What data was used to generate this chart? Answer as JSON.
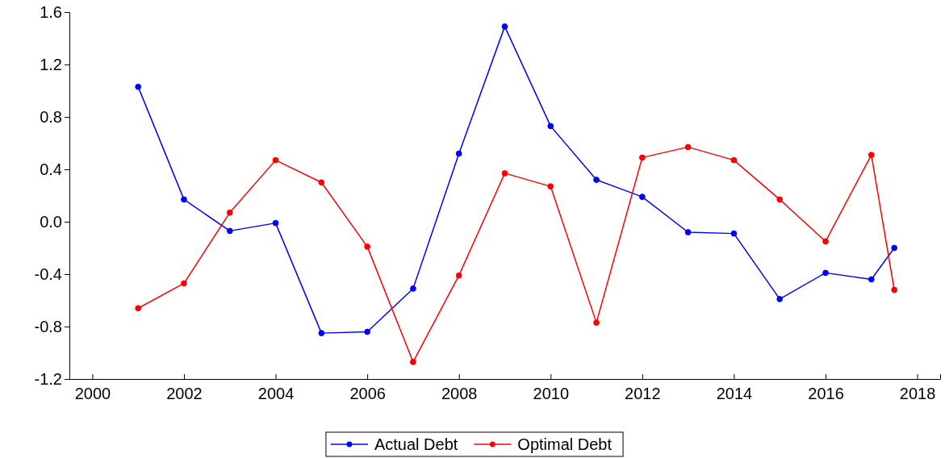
{
  "chart_data": {
    "type": "line",
    "x": [
      2001,
      2002,
      2003,
      2004,
      2005,
      2006,
      2007,
      2008,
      2009,
      2010,
      2011,
      2012,
      2013,
      2014,
      2015,
      2016,
      2017,
      2017.5
    ],
    "series": [
      {
        "name": "Actual Debt",
        "color": "#0000ff",
        "values": [
          1.03,
          0.17,
          -0.07,
          -0.01,
          -0.85,
          -0.84,
          -0.51,
          0.52,
          1.49,
          0.73,
          0.32,
          0.19,
          -0.08,
          -0.09,
          -0.59,
          -0.39,
          -0.44,
          -0.2
        ]
      },
      {
        "name": "Optimal Debt",
        "color": "#ff0000",
        "values": [
          -0.66,
          -0.47,
          0.07,
          0.47,
          0.3,
          -0.19,
          -1.07,
          -0.41,
          0.37,
          0.27,
          -0.77,
          0.49,
          0.57,
          0.47,
          0.17,
          -0.15,
          0.51,
          -0.52
        ]
      }
    ],
    "xlim": [
      1999.5,
      2018.5
    ],
    "xticks": [
      2000,
      2002,
      2004,
      2006,
      2008,
      2010,
      2012,
      2014,
      2016,
      2018
    ],
    "ylim": [
      -1.2,
      1.6
    ],
    "yticks": [
      {
        "value": -1.2,
        "label": "-1.2"
      },
      {
        "value": -0.8,
        "label": "-0.8"
      },
      {
        "value": -0.4,
        "label": "-0.4"
      },
      {
        "value": 0,
        "label": "0.0"
      },
      {
        "value": 0.4,
        "label": "0.4"
      },
      {
        "value": 0.8,
        "label": "0.8"
      },
      {
        "value": 1.2,
        "label": "1.2"
      },
      {
        "value": 1.6,
        "label": "1.6"
      }
    ],
    "legend": "bottom",
    "marker": "circle",
    "line_style": "solid"
  }
}
